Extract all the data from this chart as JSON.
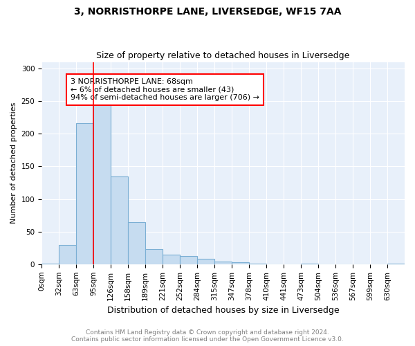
{
  "title1": "3, NORRISTHORPE LANE, LIVERSEDGE, WF15 7AA",
  "title2": "Size of property relative to detached houses in Liversedge",
  "xlabel": "Distribution of detached houses by size in Liversedge",
  "ylabel": "Number of detached properties",
  "bin_labels": [
    "0sqm",
    "32sqm",
    "63sqm",
    "95sqm",
    "126sqm",
    "158sqm",
    "189sqm",
    "221sqm",
    "252sqm",
    "284sqm",
    "315sqm",
    "347sqm",
    "378sqm",
    "410sqm",
    "441sqm",
    "473sqm",
    "504sqm",
    "536sqm",
    "567sqm",
    "599sqm",
    "630sqm"
  ],
  "bar_heights": [
    1,
    30,
    216,
    245,
    135,
    65,
    23,
    15,
    13,
    8,
    4,
    3,
    1,
    0,
    0,
    1,
    0,
    0,
    0,
    0,
    1
  ],
  "bar_color": "#c6dcf0",
  "bar_edgecolor": "#7bafd4",
  "vline_x": 2.5,
  "vline_color": "red",
  "annotation_text": "3 NORRISTHORPE LANE: 68sqm\n← 6% of detached houses are smaller (43)\n94% of semi-detached houses are larger (706) →",
  "annotation_box_color": "white",
  "annotation_box_edgecolor": "red",
  "footer1": "Contains HM Land Registry data © Crown copyright and database right 2024.",
  "footer2": "Contains public sector information licensed under the Open Government Licence v3.0.",
  "ylim": [
    0,
    310
  ],
  "yticks": [
    0,
    50,
    100,
    150,
    200,
    250,
    300
  ],
  "background_color": "#e8f0fa",
  "title1_fontsize": 10,
  "title2_fontsize": 9,
  "xlabel_fontsize": 9,
  "ylabel_fontsize": 8,
  "annotation_fontsize": 8,
  "footer_fontsize": 6.5,
  "tick_fontsize": 7.5
}
